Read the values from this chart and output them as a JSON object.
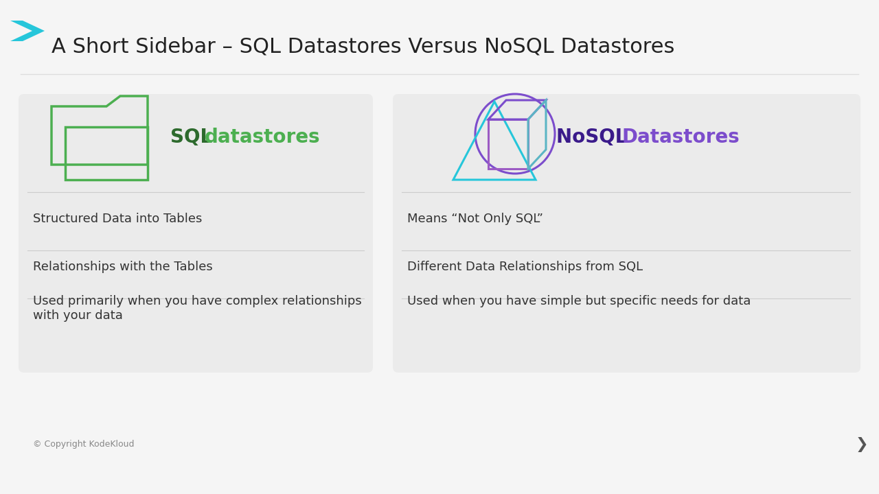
{
  "title": "A Short Sidebar – SQL Datastores Versus NoSQL Datastores",
  "title_fontsize": 22,
  "title_color": "#222222",
  "background_color": "#f5f5f5",
  "card_bg_color": "#ebebeb",
  "sql_label_bold": "SQL ",
  "sql_label_light": "datastores",
  "sql_label_bold_color": "#2d6a2d",
  "sql_label_light_color": "#4caf50",
  "nosql_label_bold": "NoSQL ",
  "nosql_label_light": "Datastores",
  "nosql_label_bold_color": "#3a1a8a",
  "nosql_label_light_color": "#7c4dcc",
  "folder_color": "#4caf50",
  "nosql_teal": "#26c6da",
  "nosql_purple": "#7c4dcc",
  "sql_bullets": [
    "Structured Data into Tables",
    "Relationships with the Tables",
    "Used primarily when you have complex relationships\nwith your data"
  ],
  "nosql_bullets": [
    "Means “Not Only SQL”",
    "Different Data Relationships from SQL",
    "Used when you have simple but specific needs for data"
  ],
  "bullet_fontsize": 13,
  "bullet_color": "#333333",
  "separator_color": "#cccccc",
  "chevron_color": "#26c6da",
  "copyright_text": "© Copyright KodeKloud",
  "copyright_color": "#888888",
  "copyright_fontsize": 9,
  "nav_arrow_color": "#555555",
  "title_line_color": "#dddddd"
}
